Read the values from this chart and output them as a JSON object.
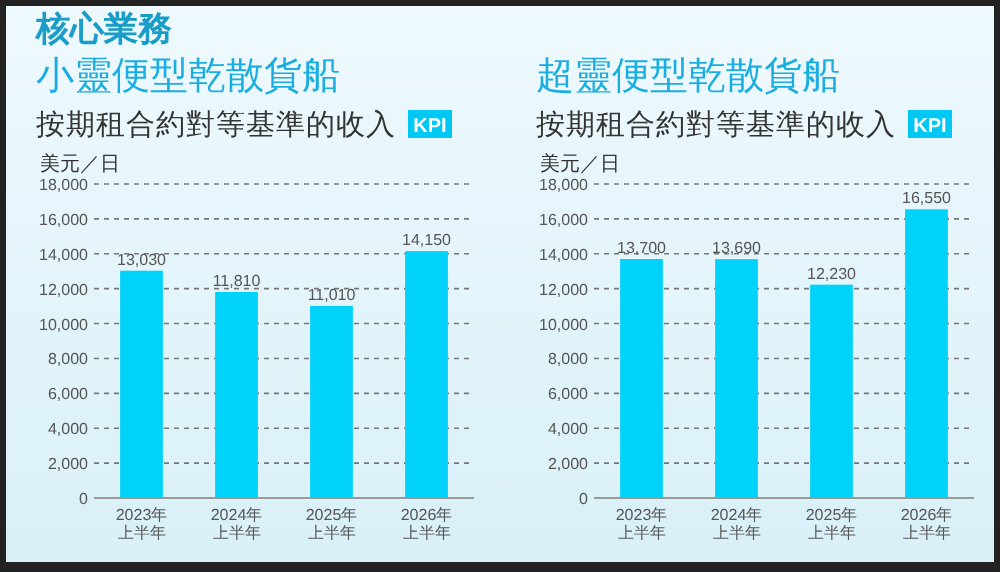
{
  "chart_data": [
    {
      "type": "bar",
      "title": "小靈便型乾散貨船",
      "subtitle": "按期租合約對等基準的收入",
      "ylabel": "美元／日",
      "annotations": [
        "核心業務",
        "KPI"
      ],
      "categories": [
        "2023年上半年",
        "2024年上半年",
        "2025年上半年",
        "2026年上半年"
      ],
      "values": [
        13030,
        11810,
        11010,
        14150
      ],
      "value_labels": [
        "13,030",
        "11,810",
        "11,010",
        "14,150"
      ],
      "color": "#00d2fa",
      "ylim": [
        0,
        18000
      ],
      "yticks": [
        0,
        {
          "value": 2000,
          "label": "2,000"
        },
        {
          "value": 4000,
          "label": "4,000"
        },
        {
          "value": 6000,
          "label": "6,000"
        },
        {
          "value": 8000,
          "label": "8,000"
        },
        {
          "value": 10000,
          "label": "10,000"
        },
        {
          "value": 12000,
          "label": "12,000"
        },
        {
          "value": 14000,
          "label": "14,000"
        },
        {
          "value": 16000,
          "label": "16,000"
        },
        {
          "value": 18000,
          "label": "18,000"
        }
      ],
      "grid": "y"
    },
    {
      "type": "bar",
      "title": "超靈便型乾散貨船",
      "subtitle": "按期租合約對等基準的收入",
      "ylabel": "美元／日",
      "annotations": [
        "KPI"
      ],
      "categories": [
        "2023年上半年",
        "2024年上半年",
        "2025年上半年",
        "2026年上半年"
      ],
      "values": [
        13700,
        13690,
        12230,
        16550
      ],
      "value_labels": [
        "13,700",
        "13,690",
        "12,230",
        "16,550"
      ],
      "color": "#00d2fa",
      "ylim": [
        0,
        18000
      ],
      "yticks": [
        0,
        {
          "value": 2000,
          "label": "2,000"
        },
        {
          "value": 4000,
          "label": "4,000"
        },
        {
          "value": 6000,
          "label": "6,000"
        },
        {
          "value": 8000,
          "label": "8,000"
        },
        {
          "value": 10000,
          "label": "10,000"
        },
        {
          "value": 12000,
          "label": "12,000"
        },
        {
          "value": 14000,
          "label": "14,000"
        },
        {
          "value": 16000,
          "label": "16,000"
        },
        {
          "value": 18000,
          "label": "18,000"
        }
      ],
      "grid": "y"
    }
  ]
}
